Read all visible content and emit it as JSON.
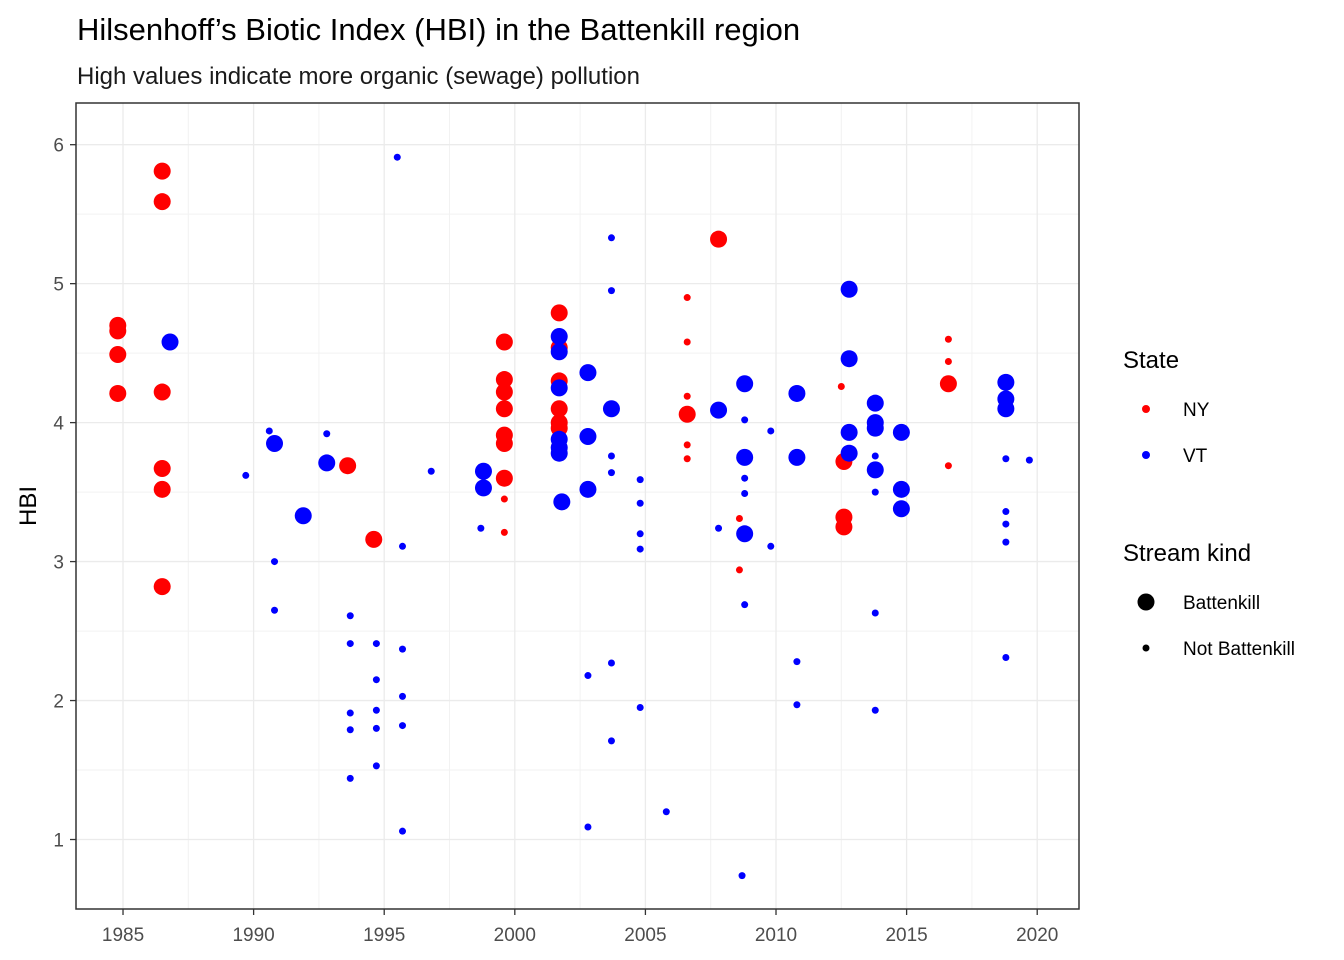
{
  "chart_data": {
    "type": "scatter",
    "title": "Hilsenhoff’s Biotic Index (HBI) in the Battenkill region",
    "subtitle": "High values indicate more organic (sewage) pollution",
    "xlabel": "",
    "ylabel": "HBI",
    "xlim": [
      1983.2,
      2021.6
    ],
    "ylim": [
      0.5,
      6.3
    ],
    "x_ticks": [
      1985,
      1990,
      1995,
      2000,
      2005,
      2010,
      2015,
      2020
    ],
    "y_ticks": [
      1,
      2,
      3,
      4,
      5,
      6
    ],
    "grid": true,
    "legend_position": "right",
    "legends": {
      "color": {
        "title": "State",
        "entries": [
          {
            "label": "NY",
            "color": "#ff0000"
          },
          {
            "label": "VT",
            "color": "#0000ff"
          }
        ]
      },
      "size": {
        "title": "Stream kind",
        "entries": [
          {
            "label": "Battenkill",
            "size": "large"
          },
          {
            "label": "Not Battenkill",
            "size": "small"
          }
        ]
      }
    },
    "series": [
      {
        "state": "NY",
        "kind": "Battenkill",
        "color": "#ff0000",
        "points": [
          [
            1984.8,
            4.7
          ],
          [
            1984.8,
            4.66
          ],
          [
            1984.8,
            4.49
          ],
          [
            1984.8,
            4.21
          ],
          [
            1986.5,
            5.81
          ],
          [
            1986.5,
            5.59
          ],
          [
            1986.5,
            4.22
          ],
          [
            1986.5,
            3.67
          ],
          [
            1986.5,
            3.52
          ],
          [
            1986.5,
            2.82
          ],
          [
            1993.6,
            3.69
          ],
          [
            1994.6,
            3.16
          ],
          [
            1999.6,
            4.58
          ],
          [
            1999.6,
            4.31
          ],
          [
            1999.6,
            4.22
          ],
          [
            1999.6,
            4.1
          ],
          [
            1999.6,
            3.91
          ],
          [
            1999.6,
            3.85
          ],
          [
            1999.6,
            3.6
          ],
          [
            2001.7,
            4.79
          ],
          [
            2001.7,
            4.54
          ],
          [
            2001.7,
            4.3
          ],
          [
            2001.7,
            4.1
          ],
          [
            2001.7,
            4.0
          ],
          [
            2001.7,
            3.96
          ],
          [
            2006.6,
            4.06
          ],
          [
            2007.8,
            5.32
          ],
          [
            2012.6,
            3.72
          ],
          [
            2012.6,
            3.32
          ],
          [
            2012.6,
            3.25
          ],
          [
            2016.6,
            4.28
          ]
        ]
      },
      {
        "state": "VT",
        "kind": "Battenkill",
        "color": "#0000ff",
        "points": [
          [
            1986.8,
            4.58
          ],
          [
            1990.8,
            3.85
          ],
          [
            1991.9,
            3.33
          ],
          [
            1992.8,
            3.71
          ],
          [
            1998.8,
            3.65
          ],
          [
            1998.8,
            3.53
          ],
          [
            2001.7,
            4.62
          ],
          [
            2001.7,
            4.51
          ],
          [
            2001.7,
            4.25
          ],
          [
            2001.7,
            3.88
          ],
          [
            2001.7,
            3.82
          ],
          [
            2001.7,
            3.78
          ],
          [
            2001.8,
            3.43
          ],
          [
            2002.8,
            4.36
          ],
          [
            2002.8,
            3.9
          ],
          [
            2002.8,
            3.52
          ],
          [
            2003.7,
            4.1
          ],
          [
            2007.8,
            4.09
          ],
          [
            2008.8,
            4.28
          ],
          [
            2008.8,
            3.75
          ],
          [
            2008.8,
            3.2
          ],
          [
            2010.8,
            4.21
          ],
          [
            2010.8,
            3.75
          ],
          [
            2012.8,
            4.96
          ],
          [
            2012.8,
            4.46
          ],
          [
            2012.8,
            3.93
          ],
          [
            2012.8,
            3.78
          ],
          [
            2013.8,
            4.14
          ],
          [
            2013.8,
            4.0
          ],
          [
            2013.8,
            3.96
          ],
          [
            2013.8,
            3.66
          ],
          [
            2014.8,
            3.93
          ],
          [
            2014.8,
            3.52
          ],
          [
            2014.8,
            3.38
          ],
          [
            2018.8,
            4.29
          ],
          [
            2018.8,
            4.17
          ],
          [
            2018.8,
            4.1
          ]
        ]
      },
      {
        "state": "NY",
        "kind": "Not Battenkill",
        "color": "#ff0000",
        "points": [
          [
            1999.6,
            3.45
          ],
          [
            1999.6,
            3.21
          ],
          [
            2006.6,
            4.9
          ],
          [
            2006.6,
            4.58
          ],
          [
            2006.6,
            4.19
          ],
          [
            2006.6,
            3.84
          ],
          [
            2006.6,
            3.74
          ],
          [
            2008.6,
            2.94
          ],
          [
            2008.6,
            3.31
          ],
          [
            2012.5,
            4.26
          ],
          [
            2016.6,
            4.6
          ],
          [
            2016.6,
            4.44
          ],
          [
            2016.6,
            3.69
          ]
        ]
      },
      {
        "state": "VT",
        "kind": "Not Battenkill",
        "color": "#0000ff",
        "points": [
          [
            1989.7,
            3.62
          ],
          [
            1990.6,
            3.94
          ],
          [
            1990.8,
            3.0
          ],
          [
            1990.8,
            2.65
          ],
          [
            1992.8,
            3.92
          ],
          [
            1993.7,
            2.61
          ],
          [
            1993.7,
            2.41
          ],
          [
            1993.7,
            1.91
          ],
          [
            1993.7,
            1.79
          ],
          [
            1993.7,
            1.44
          ],
          [
            1994.7,
            2.41
          ],
          [
            1994.7,
            2.15
          ],
          [
            1994.7,
            1.93
          ],
          [
            1994.7,
            1.8
          ],
          [
            1994.7,
            1.53
          ],
          [
            1995.5,
            5.91
          ],
          [
            1995.7,
            3.11
          ],
          [
            1995.7,
            2.37
          ],
          [
            1995.7,
            2.03
          ],
          [
            1995.7,
            1.82
          ],
          [
            1995.7,
            1.06
          ],
          [
            1996.8,
            3.65
          ],
          [
            1998.7,
            3.24
          ],
          [
            2002.8,
            2.18
          ],
          [
            2002.8,
            1.09
          ],
          [
            2003.7,
            5.33
          ],
          [
            2003.7,
            4.95
          ],
          [
            2003.7,
            3.76
          ],
          [
            2003.7,
            3.64
          ],
          [
            2003.7,
            2.27
          ],
          [
            2003.7,
            1.71
          ],
          [
            2004.8,
            3.59
          ],
          [
            2004.8,
            3.42
          ],
          [
            2004.8,
            3.2
          ],
          [
            2004.8,
            3.09
          ],
          [
            2004.8,
            1.95
          ],
          [
            2005.8,
            1.2
          ],
          [
            2007.8,
            3.24
          ],
          [
            2008.8,
            4.02
          ],
          [
            2008.8,
            3.6
          ],
          [
            2008.8,
            3.49
          ],
          [
            2008.8,
            2.69
          ],
          [
            2008.7,
            0.74
          ],
          [
            2009.8,
            3.94
          ],
          [
            2009.8,
            3.11
          ],
          [
            2010.8,
            2.28
          ],
          [
            2010.8,
            1.97
          ],
          [
            2013.8,
            3.76
          ],
          [
            2013.8,
            3.5
          ],
          [
            2013.8,
            2.63
          ],
          [
            2013.8,
            1.93
          ],
          [
            2018.8,
            3.74
          ],
          [
            2018.8,
            3.36
          ],
          [
            2018.8,
            3.27
          ],
          [
            2018.8,
            3.14
          ],
          [
            2018.8,
            2.31
          ],
          [
            2019.7,
            3.73
          ]
        ]
      }
    ]
  }
}
